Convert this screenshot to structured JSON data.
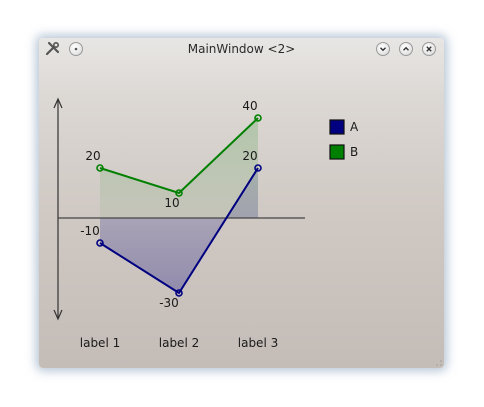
{
  "window": {
    "title": "MainWindow <2>"
  },
  "chart_data": {
    "type": "line",
    "categories": [
      "label 1",
      "label 2",
      "label 3"
    ],
    "series": [
      {
        "name": "A",
        "values": [
          -10,
          -30,
          20
        ],
        "color": "#000080"
      },
      {
        "name": "B",
        "values": [
          20,
          10,
          40
        ],
        "color": "#008000"
      }
    ],
    "ylim": [
      -40,
      45
    ],
    "area_fill": true,
    "legend_position": "top-right",
    "grid": false
  },
  "icons": {
    "app": "wrench-icon",
    "menu": "window-menu-icon",
    "minimize": "minimize-icon",
    "maximize": "maximize-icon",
    "close": "close-icon"
  }
}
